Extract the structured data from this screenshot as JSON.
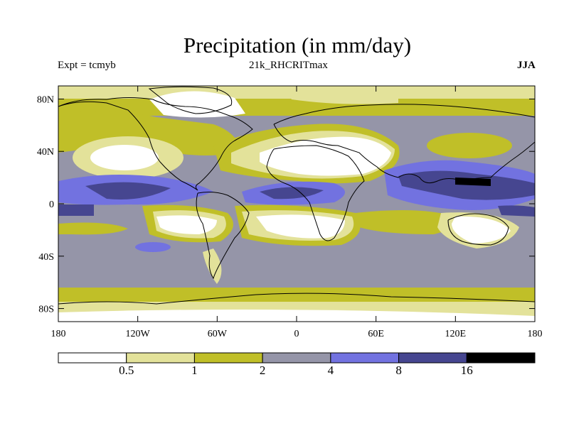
{
  "header": {
    "title": "Precipitation (in mm/day)",
    "expt": "Expt = tcmyb",
    "run": "21k_RHCRITmax",
    "season": "JJA"
  },
  "axes": {
    "y_ticks": [
      {
        "value": 80,
        "label": "80N"
      },
      {
        "value": 40,
        "label": "40N"
      },
      {
        "value": 0,
        "label": "0"
      },
      {
        "value": -40,
        "label": "40S"
      },
      {
        "value": -80,
        "label": "80S"
      }
    ],
    "x_ticks": [
      {
        "value": -180,
        "label": "180"
      },
      {
        "value": -120,
        "label": "120W"
      },
      {
        "value": -60,
        "label": "60W"
      },
      {
        "value": 0,
        "label": "0"
      },
      {
        "value": 60,
        "label": "60E"
      },
      {
        "value": 120,
        "label": "120E"
      },
      {
        "value": 180,
        "label": "180"
      }
    ]
  },
  "legend": {
    "colors": [
      "#ffffff",
      "#e3e29a",
      "#c0bf28",
      "#9595a8",
      "#7272e0",
      "#464690",
      "#000000"
    ],
    "labels": [
      "0.5",
      "1",
      "2",
      "4",
      "8",
      "16"
    ]
  }
}
